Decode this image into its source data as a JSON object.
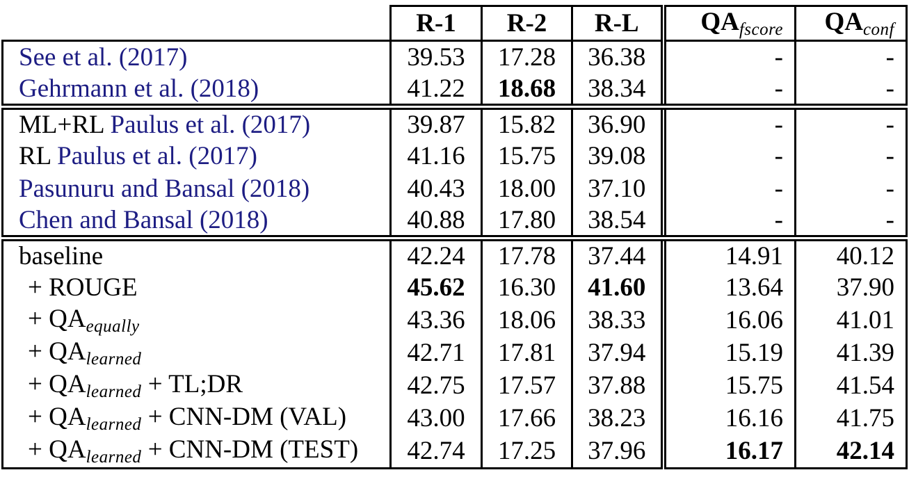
{
  "colors": {
    "citation_blue": "#1d1d83",
    "rule_black": "#000000",
    "background": "#ffffff"
  },
  "table": {
    "columns": [
      {
        "label": ""
      },
      {
        "label": "R-1"
      },
      {
        "label": "R-2"
      },
      {
        "label": "R-L"
      },
      {
        "label": "QA",
        "sub": "fscore"
      },
      {
        "label": "QA",
        "sub": "conf"
      }
    ],
    "groups": [
      {
        "rows": [
          {
            "label": [
              {
                "t": "See et al. (2017)",
                "k": "cite"
              }
            ],
            "values": [
              "39.53",
              "17.28",
              "36.38",
              "-",
              "-"
            ],
            "bold": []
          },
          {
            "label": [
              {
                "t": "Gehrmann et al. (2018)",
                "k": "cite"
              }
            ],
            "values": [
              "41.22",
              "18.68",
              "38.34",
              "-",
              "-"
            ],
            "bold": [
              1
            ]
          }
        ]
      },
      {
        "rows": [
          {
            "label": [
              {
                "t": "ML+RL ",
                "k": "plain"
              },
              {
                "t": "Paulus et al. (2017)",
                "k": "cite"
              }
            ],
            "values": [
              "39.87",
              "15.82",
              "36.90",
              "-",
              "-"
            ],
            "bold": []
          },
          {
            "label": [
              {
                "t": "RL ",
                "k": "plain"
              },
              {
                "t": "Paulus et al. (2017)",
                "k": "cite"
              }
            ],
            "values": [
              "41.16",
              "15.75",
              "39.08",
              "-",
              "-"
            ],
            "bold": []
          },
          {
            "label": [
              {
                "t": "Pasunuru and Bansal (2018)",
                "k": "cite"
              }
            ],
            "values": [
              "40.43",
              "18.00",
              "37.10",
              "-",
              "-"
            ],
            "bold": []
          },
          {
            "label": [
              {
                "t": "Chen and Bansal (2018)",
                "k": "cite"
              }
            ],
            "values": [
              "40.88",
              "17.80",
              "38.54",
              "-",
              "-"
            ],
            "bold": []
          }
        ]
      },
      {
        "rows": [
          {
            "label": [
              {
                "t": "baseline",
                "k": "plain"
              }
            ],
            "values": [
              "42.24",
              "17.78",
              "37.44",
              "14.91",
              "40.12"
            ],
            "bold": []
          },
          {
            "label": [
              {
                "t": "+ ROUGE",
                "k": "plain"
              }
            ],
            "indent": true,
            "values": [
              "45.62",
              "16.30",
              "41.60",
              "13.64",
              "37.90"
            ],
            "bold": [
              0,
              2
            ]
          },
          {
            "label": [
              {
                "t": "+ QA",
                "k": "plain"
              },
              {
                "t": "equally",
                "k": "sub"
              }
            ],
            "indent": true,
            "values": [
              "43.36",
              "18.06",
              "38.33",
              "16.06",
              "41.01"
            ],
            "bold": []
          },
          {
            "label": [
              {
                "t": "+ QA",
                "k": "plain"
              },
              {
                "t": "learned",
                "k": "sub"
              }
            ],
            "indent": true,
            "values": [
              "42.71",
              "17.81",
              "37.94",
              "15.19",
              "41.39"
            ],
            "bold": []
          },
          {
            "label": [
              {
                "t": "+ QA",
                "k": "plain"
              },
              {
                "t": "learned",
                "k": "sub"
              },
              {
                "t": " + TL;DR",
                "k": "plain"
              }
            ],
            "indent": true,
            "values": [
              "42.75",
              "17.57",
              "37.88",
              "15.75",
              "41.54"
            ],
            "bold": []
          },
          {
            "label": [
              {
                "t": "+ QA",
                "k": "plain"
              },
              {
                "t": "learned",
                "k": "sub"
              },
              {
                "t": " + CNN-DM (VAL)",
                "k": "plain"
              }
            ],
            "indent": true,
            "values": [
              "43.00",
              "17.66",
              "38.23",
              "16.16",
              "41.75"
            ],
            "bold": []
          },
          {
            "label": [
              {
                "t": "+ QA",
                "k": "plain"
              },
              {
                "t": "learned",
                "k": "sub"
              },
              {
                "t": " + CNN-DM (TEST)",
                "k": "plain"
              }
            ],
            "indent": true,
            "values": [
              "42.74",
              "17.25",
              "37.96",
              "16.17",
              "42.14"
            ],
            "bold": [
              3,
              4
            ]
          }
        ]
      }
    ]
  }
}
